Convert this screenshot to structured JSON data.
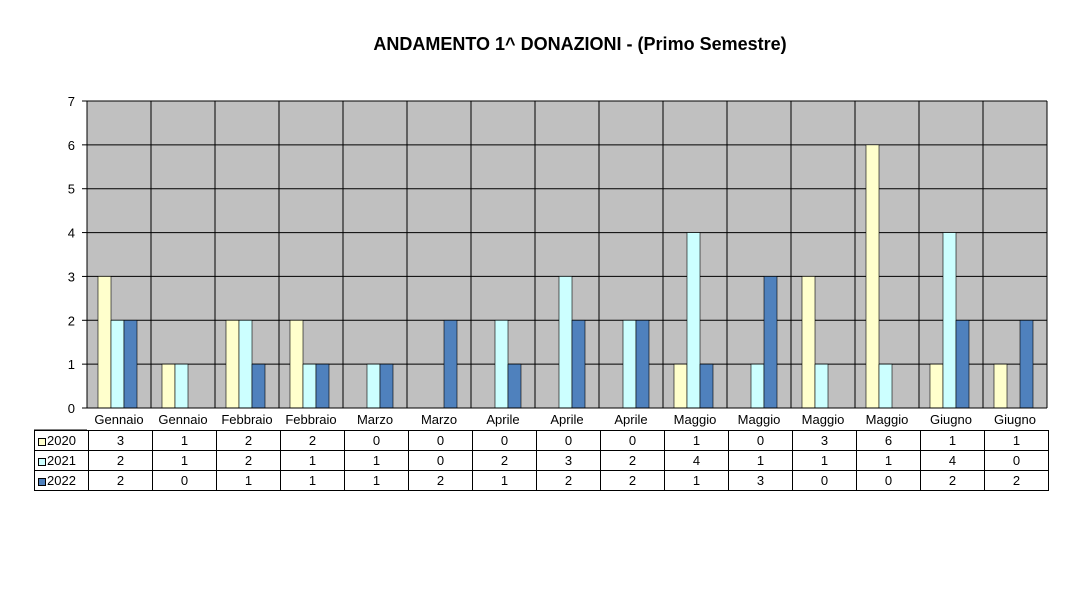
{
  "chart_data": {
    "type": "bar",
    "title": "ANDAMENTO 1^ DONAZIONI  -  (Primo Semestre)",
    "categories": [
      "Gennaio",
      "Gennaio",
      "Febbraio",
      "Febbraio",
      "Marzo",
      "Marzo",
      "Aprile",
      "Aprile",
      "Aprile",
      "Maggio",
      "Maggio",
      "Maggio",
      "Maggio",
      "Giugno",
      "Giugno"
    ],
    "series": [
      {
        "name": "2020",
        "color": "#ffffcc",
        "values": [
          3,
          1,
          2,
          2,
          0,
          0,
          0,
          0,
          0,
          1,
          0,
          3,
          6,
          1,
          1
        ]
      },
      {
        "name": "2021",
        "color": "#ccffff",
        "values": [
          2,
          1,
          2,
          1,
          1,
          0,
          2,
          3,
          2,
          4,
          1,
          1,
          1,
          4,
          0
        ]
      },
      {
        "name": "2022",
        "color": "#4f81bd",
        "values": [
          2,
          0,
          1,
          1,
          1,
          2,
          1,
          2,
          2,
          1,
          3,
          0,
          0,
          2,
          2
        ]
      }
    ],
    "yticks": [
      "0",
      "1",
      "2",
      "3",
      "4",
      "5",
      "6",
      "7"
    ],
    "ylim": [
      0,
      7
    ],
    "grid": true,
    "plot_background": "#c0c0c0",
    "legend_placement": "data-table-left"
  }
}
